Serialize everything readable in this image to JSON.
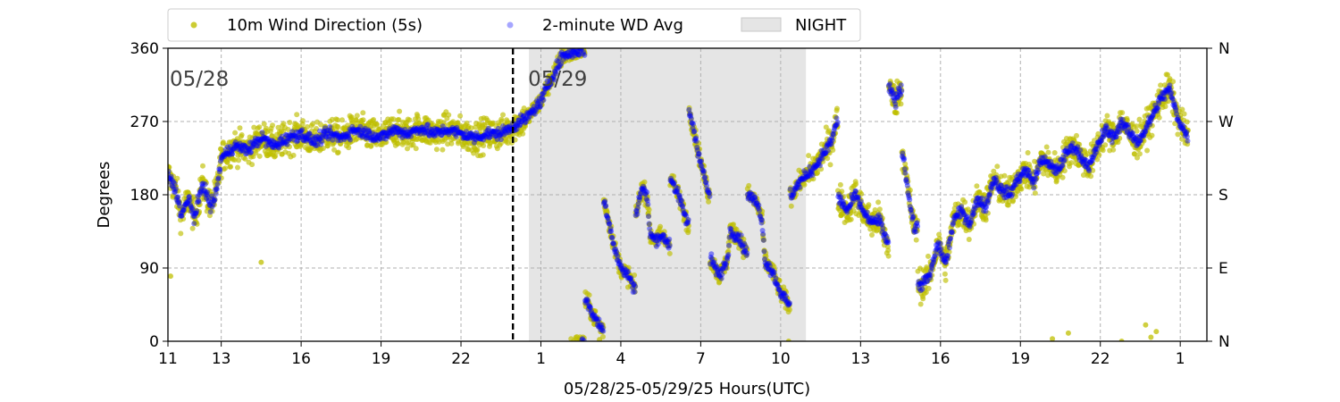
{
  "chart_data": {
    "type": "scatter",
    "xlabel": "05/28/25-05/29/25  Hours(UTC)",
    "ylabel": "Degrees",
    "x_range_hours": [
      11,
      50
    ],
    "ylim": [
      0,
      360
    ],
    "x_tick_hours": [
      11,
      13,
      16,
      19,
      22,
      25,
      28,
      31,
      34,
      37,
      40,
      43,
      46,
      49
    ],
    "x_tick_labels": [
      "11",
      "13",
      "16",
      "19",
      "22",
      "1",
      "4",
      "7",
      "10",
      "13",
      "16",
      "19",
      "22",
      "1"
    ],
    "y_ticks": [
      0,
      90,
      180,
      270,
      360
    ],
    "y_tick_labels": [
      "0",
      "90",
      "180",
      "270",
      "360"
    ],
    "y2_tick_labels": [
      "N",
      "E",
      "S",
      "W",
      "N"
    ],
    "grid": true,
    "legend_placement": "top-center, above plot",
    "day_labels": [
      {
        "text": "05/28",
        "hour": 11.0,
        "y": 325
      },
      {
        "text": "05/29",
        "hour": 24.45,
        "y": 325
      }
    ],
    "midnight_line_hour": 23.95,
    "night_band_hours": [
      24.55,
      34.95
    ],
    "series": [
      {
        "name": "10m Wind Direction (5s)",
        "color": "#bfbf00",
        "marker": "circle"
      },
      {
        "name": "2-minute WD Avg",
        "color": "#0000ff",
        "marker": "circle"
      },
      {
        "name": "NIGHT",
        "color": "#e5e5e5",
        "marker": "band"
      }
    ],
    "wd_avg_profile": [
      [
        11.0,
        205
      ],
      [
        11.3,
        185
      ],
      [
        11.5,
        155
      ],
      [
        11.8,
        175
      ],
      [
        12.0,
        150
      ],
      [
        12.3,
        195
      ],
      [
        12.6,
        165
      ],
      [
        12.8,
        180
      ],
      [
        13.0,
        225
      ],
      [
        13.5,
        240
      ],
      [
        14.0,
        235
      ],
      [
        14.5,
        250
      ],
      [
        15.0,
        240
      ],
      [
        15.5,
        250
      ],
      [
        16.0,
        255
      ],
      [
        16.5,
        245
      ],
      [
        17.0,
        255
      ],
      [
        17.5,
        250
      ],
      [
        18.0,
        260
      ],
      [
        18.5,
        255
      ],
      [
        19.0,
        250
      ],
      [
        19.5,
        260
      ],
      [
        20.0,
        255
      ],
      [
        20.5,
        262
      ],
      [
        21.0,
        255
      ],
      [
        21.5,
        260
      ],
      [
        22.0,
        255
      ],
      [
        22.5,
        250
      ],
      [
        23.0,
        255
      ],
      [
        23.5,
        255
      ],
      [
        24.0,
        265
      ],
      [
        24.5,
        275
      ],
      [
        25.0,
        295
      ],
      [
        25.5,
        330
      ],
      [
        25.8,
        350
      ],
      [
        26.2,
        355
      ],
      [
        26.6,
        358
      ],
      [
        26.7,
        50
      ],
      [
        27.0,
        30
      ],
      [
        27.3,
        15
      ],
      [
        27.4,
        170
      ],
      [
        27.6,
        140
      ],
      [
        27.8,
        110
      ],
      [
        28.0,
        90
      ],
      [
        28.3,
        80
      ],
      [
        28.5,
        65
      ],
      [
        28.6,
        160
      ],
      [
        28.8,
        190
      ],
      [
        29.0,
        175
      ],
      [
        29.1,
        130
      ],
      [
        29.3,
        125
      ],
      [
        29.5,
        130
      ],
      [
        29.8,
        120
      ],
      [
        29.9,
        200
      ],
      [
        30.2,
        175
      ],
      [
        30.5,
        145
      ],
      [
        30.6,
        280
      ],
      [
        30.8,
        250
      ],
      [
        31.0,
        220
      ],
      [
        31.3,
        180
      ],
      [
        31.4,
        100
      ],
      [
        31.7,
        80
      ],
      [
        32.0,
        100
      ],
      [
        32.1,
        135
      ],
      [
        32.4,
        130
      ],
      [
        32.7,
        110
      ],
      [
        32.8,
        180
      ],
      [
        33.1,
        170
      ],
      [
        33.3,
        150
      ],
      [
        33.4,
        100
      ],
      [
        33.7,
        85
      ],
      [
        34.0,
        60
      ],
      [
        34.3,
        45
      ],
      [
        34.4,
        180
      ],
      [
        34.7,
        195
      ],
      [
        35.0,
        205
      ],
      [
        35.3,
        215
      ],
      [
        35.6,
        230
      ],
      [
        35.9,
        245
      ],
      [
        36.1,
        270
      ],
      [
        36.2,
        175
      ],
      [
        36.5,
        160
      ],
      [
        36.8,
        180
      ],
      [
        37.1,
        160
      ],
      [
        37.4,
        145
      ],
      [
        37.7,
        150
      ],
      [
        38.0,
        120
      ],
      [
        38.1,
        310
      ],
      [
        38.3,
        295
      ],
      [
        38.5,
        310
      ],
      [
        38.6,
        230
      ],
      [
        38.8,
        180
      ],
      [
        39.0,
        140
      ],
      [
        39.3,
        70
      ],
      [
        39.6,
        80
      ],
      [
        39.9,
        120
      ],
      [
        40.2,
        95
      ],
      [
        40.5,
        150
      ],
      [
        40.8,
        160
      ],
      [
        41.1,
        145
      ],
      [
        41.4,
        175
      ],
      [
        41.7,
        165
      ],
      [
        42.0,
        200
      ],
      [
        42.3,
        185
      ],
      [
        42.6,
        180
      ],
      [
        42.9,
        200
      ],
      [
        43.2,
        210
      ],
      [
        43.5,
        195
      ],
      [
        43.8,
        225
      ],
      [
        44.1,
        215
      ],
      [
        44.4,
        210
      ],
      [
        44.7,
        230
      ],
      [
        45.0,
        240
      ],
      [
        45.3,
        225
      ],
      [
        45.6,
        215
      ],
      [
        45.9,
        240
      ],
      [
        46.2,
        260
      ],
      [
        46.5,
        250
      ],
      [
        46.8,
        270
      ],
      [
        47.1,
        255
      ],
      [
        47.4,
        245
      ],
      [
        47.7,
        260
      ],
      [
        48.0,
        280
      ],
      [
        48.3,
        300
      ],
      [
        48.6,
        310
      ],
      [
        48.9,
        275
      ],
      [
        49.2,
        255
      ],
      [
        49.5,
        240
      ],
      [
        49.8,
        235
      ],
      [
        50.0,
        245
      ]
    ]
  }
}
